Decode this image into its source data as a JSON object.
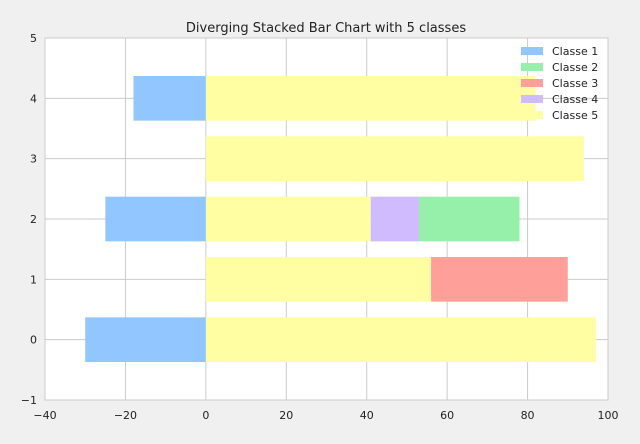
{
  "chart_data": {
    "type": "bar",
    "orientation": "horizontal",
    "stacked": true,
    "diverging": true,
    "title": "Diverging Stacked Bar Chart with 5 classes",
    "xlabel": "",
    "ylabel": "",
    "xlim": [
      -40,
      100
    ],
    "ylim": [
      -1,
      5
    ],
    "xticks": [
      -40,
      -20,
      0,
      20,
      40,
      60,
      80,
      100
    ],
    "yticks": [
      -1,
      0,
      1,
      2,
      3,
      4,
      5
    ],
    "grid": true,
    "legend_position": "top-right",
    "categories": [
      0,
      1,
      2,
      3,
      4
    ],
    "series": [
      {
        "name": "Classe 1",
        "color": "#92c6ff",
        "values": [
          -30,
          0,
          -25,
          0,
          -18
        ]
      },
      {
        "name": "Classe 2",
        "color": "#97f0aa",
        "values": [
          0,
          0,
          25,
          0,
          0
        ]
      },
      {
        "name": "Classe 3",
        "color": "#ff9f9a",
        "values": [
          0,
          34,
          0,
          0,
          0
        ]
      },
      {
        "name": "Classe 4",
        "color": "#d0bbff",
        "values": [
          0,
          0,
          12,
          0,
          0
        ]
      },
      {
        "name": "Classe 5",
        "color": "#fffea3",
        "values": [
          97,
          56,
          41,
          94,
          82
        ]
      }
    ],
    "stack_order_positive": [
      "Classe 5",
      "Classe 4",
      "Classe 3",
      "Classe 2"
    ]
  }
}
